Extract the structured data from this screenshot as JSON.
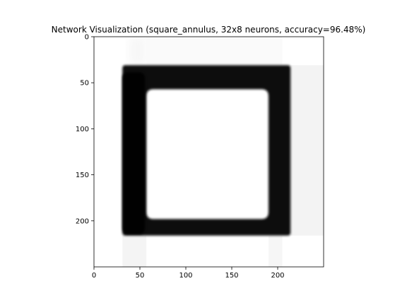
{
  "chart_data": {
    "type": "heatmap",
    "title": "Network Visualization (square_annulus, 32x8 neurons, accuracy=96.48%)",
    "xlabel": "",
    "ylabel": "",
    "xlim": [
      0,
      250
    ],
    "ylim": [
      250,
      0
    ],
    "y_inverted": true,
    "grid": false,
    "legend": "none",
    "colormap": "gray",
    "x_ticks": [
      0,
      50,
      100,
      150,
      200
    ],
    "y_ticks": [
      0,
      50,
      100,
      150,
      200
    ],
    "description": "Model output: dark square annulus (class 1) on light background (class 0)",
    "outer_square": {
      "x": [
        31,
        214
      ],
      "y": [
        31,
        216
      ]
    },
    "inner_square": {
      "x": [
        57,
        190
      ],
      "y": [
        57,
        198
      ]
    },
    "colors": {
      "predicted_class_1": "#0e0e0e",
      "predicted_class_0": "#ffffff",
      "background": "#ffffff",
      "axes_frame": "#000000"
    }
  }
}
